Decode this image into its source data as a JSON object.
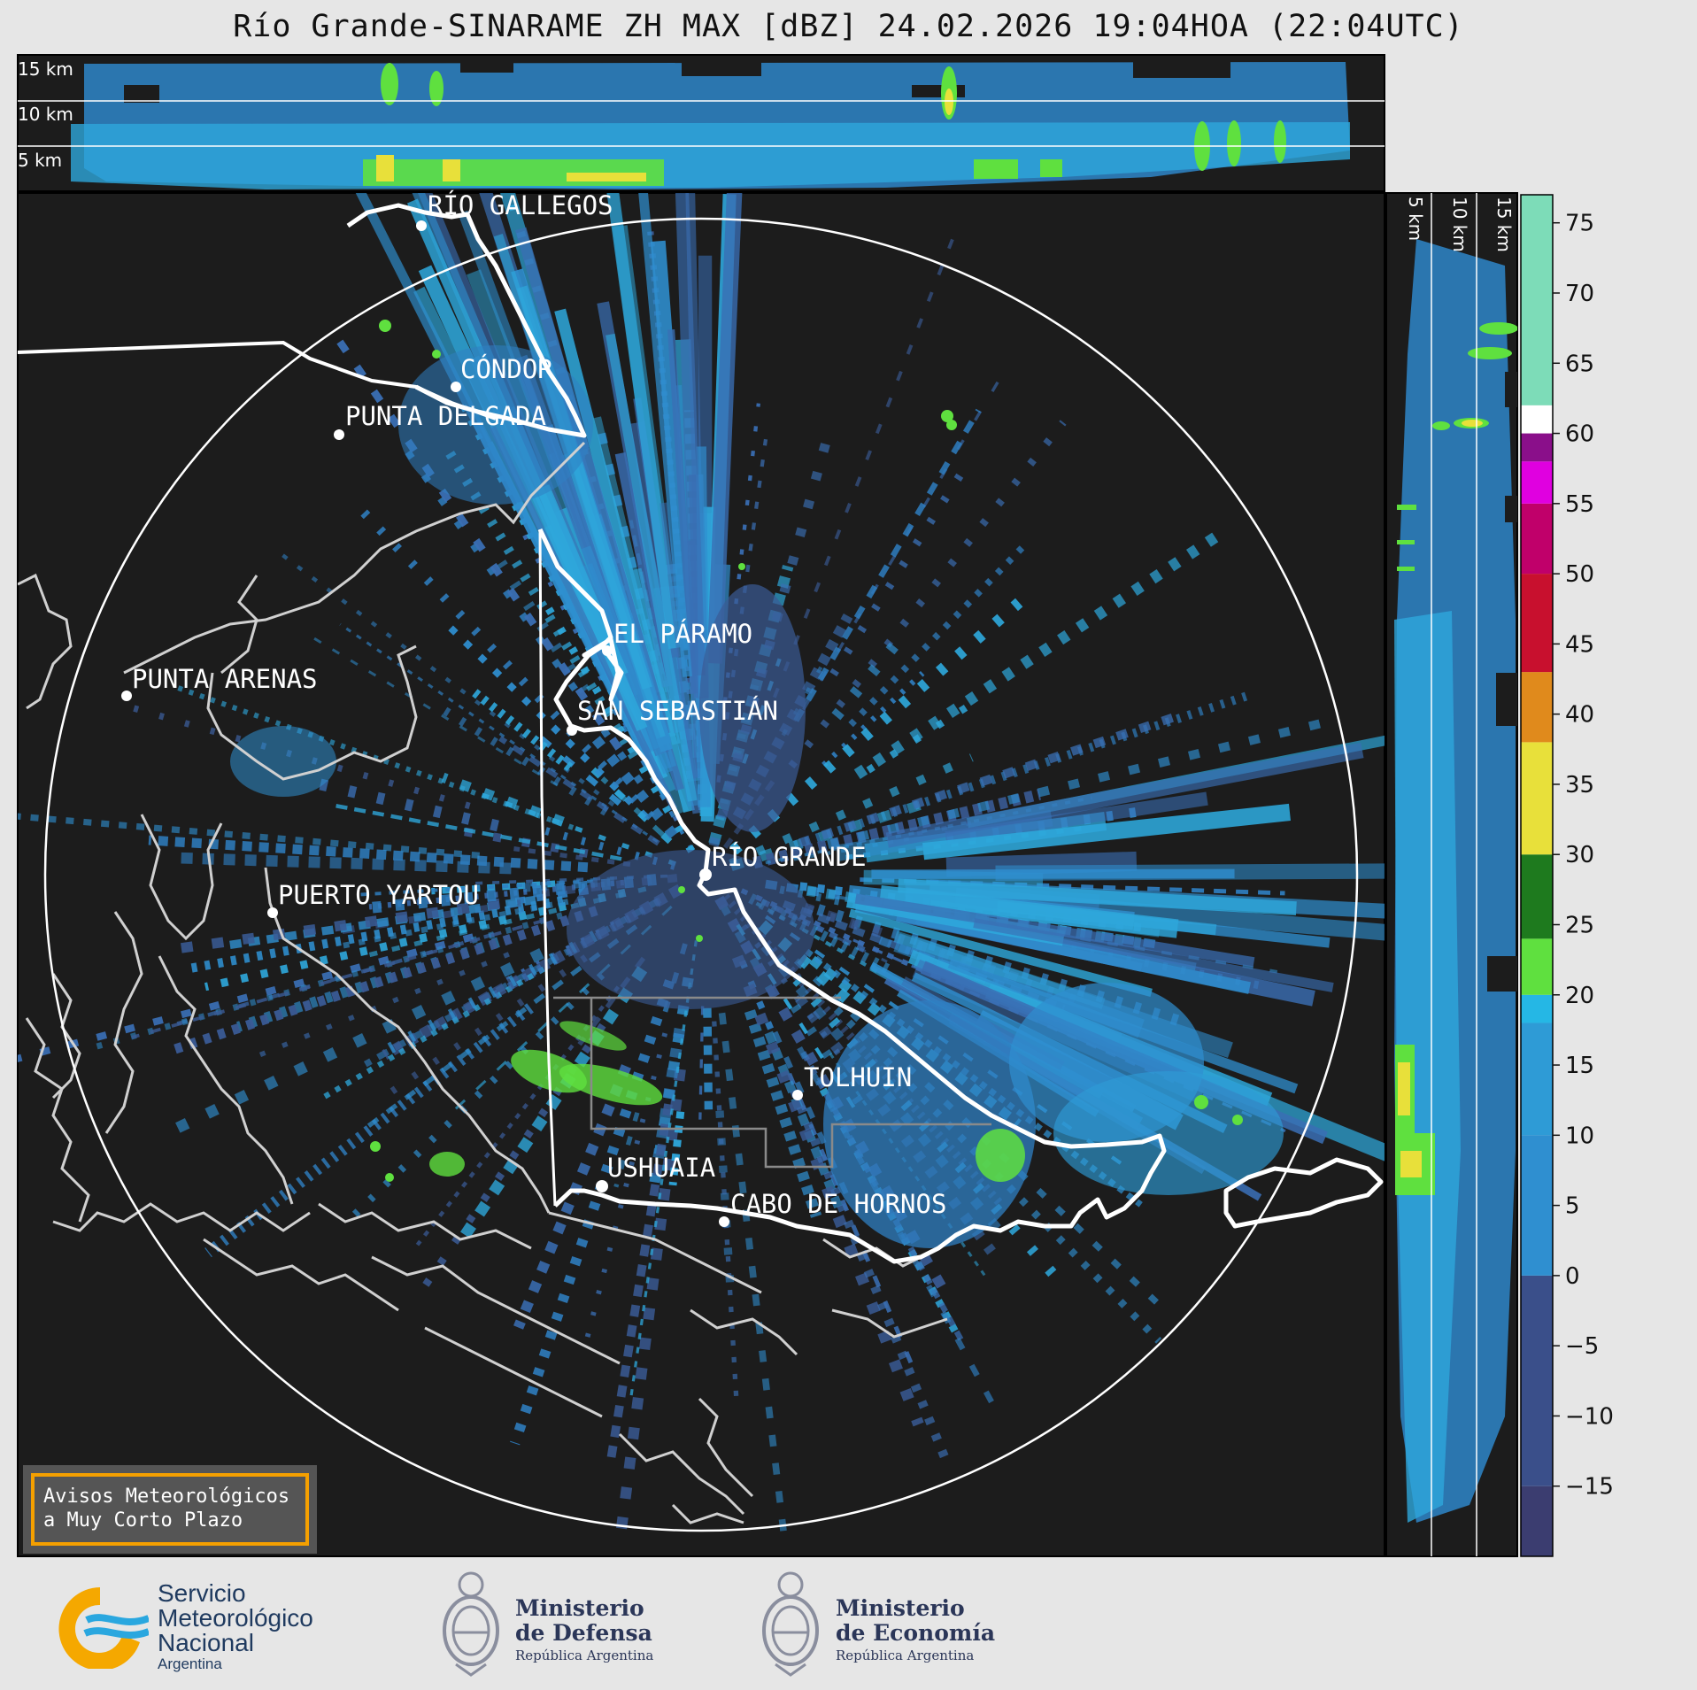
{
  "header": {
    "title": "Río Grande-SINARAME ZH MAX [dBZ] 24.02.2026 19:04HOA (22:04UTC)"
  },
  "top_profile": {
    "height_labels": [
      "15 km",
      "10 km",
      "5 km"
    ]
  },
  "side_profile": {
    "height_labels": [
      "5 km",
      "10 km",
      "15 km"
    ]
  },
  "map": {
    "places": [
      "RÍO GALLEGOS",
      "CÓNDOR",
      "PUNTA DELGADA",
      "EL PÁRAMO",
      "PUNTA ARENAS",
      "SAN SEBASTIÁN",
      "RÍO GRANDE",
      "PUERTO YARTOU",
      "TOLHUIN",
      "USHUAIA",
      "CABO DE HORNOS"
    ]
  },
  "colorbar": {
    "unit": "dBZ",
    "ticks": [
      "75",
      "70",
      "65",
      "60",
      "55",
      "50",
      "45",
      "40",
      "35",
      "30",
      "25",
      "20",
      "15",
      "10",
      "5",
      "0",
      "−5",
      "−10",
      "−15"
    ],
    "colors": {
      "low": "#3b3d70",
      "blue": "#2f8fd0",
      "cyan": "#25b7e5",
      "green": "#1e7a1e",
      "light_green": "#5fe03f",
      "yellow": "#e8e03a",
      "orange": "#e08a1c",
      "red": "#c8102e",
      "magenta": "#e000e0",
      "purple": "#8a0f8a",
      "white": "#ffffff",
      "mint": "#7ddcb8"
    }
  },
  "notice": {
    "line1": "Avisos Meteorológicos",
    "line2": "a Muy Corto Plazo"
  },
  "footer": {
    "smn": {
      "line1": "Servicio",
      "line2": "Meteorológico",
      "line3": "Nacional",
      "line4": "Argentina"
    },
    "defensa": {
      "line1": "Ministerio",
      "line2": "de Defensa",
      "line3": "República Argentina"
    },
    "economia": {
      "line1": "Ministerio",
      "line2": "de Economía",
      "line3": "República Argentina"
    }
  }
}
